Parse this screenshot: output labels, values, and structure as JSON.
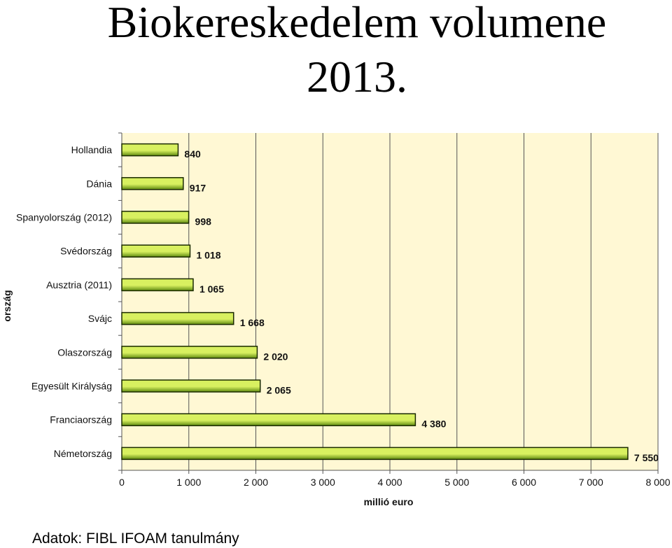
{
  "page": {
    "title_line1": "Biokereskedelem volumene",
    "title_line2": "2013.",
    "source": "Adatok: FIBL IFOAM tanulmány"
  },
  "chart_data": {
    "type": "bar",
    "orientation": "horizontal",
    "categories": [
      "Hollandia",
      "Dánia",
      "Spanyolország (2012)",
      "Svédország",
      "Ausztria (2011)",
      "Svájc",
      "Olaszország",
      "Egyesült Királyság",
      "Franciaország",
      "Németország"
    ],
    "values": [
      840,
      917,
      998,
      1018,
      1065,
      1668,
      2020,
      2065,
      4380,
      7550
    ],
    "value_labels": [
      "840",
      "917",
      "998",
      "1 018",
      "1 065",
      "1 668",
      "2 020",
      "2 065",
      "4 380",
      "7 550"
    ],
    "tick_labels": [
      "0",
      "1 000",
      "2 000",
      "3 000",
      "4 000",
      "5 000",
      "6 000",
      "7 000",
      "8 000"
    ],
    "xlabel": "millió euro",
    "ylabel": "ország",
    "xlim": [
      0,
      8000
    ],
    "grid": "vertical",
    "colors": {
      "plot_bg": "#FFF8D4",
      "bar_light": "#D8F060",
      "bar_dark": "#5E8A10",
      "bar_stroke": "#1a2a00"
    }
  }
}
